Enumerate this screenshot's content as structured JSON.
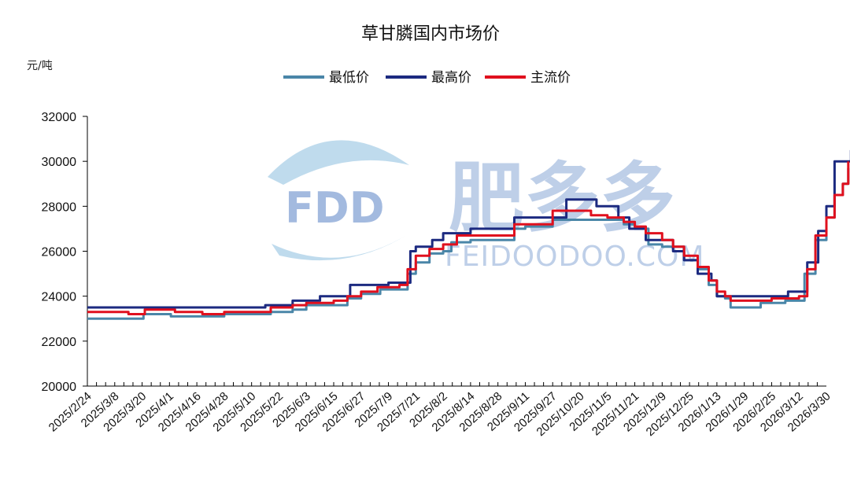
{
  "chart_data": {
    "type": "line",
    "title": "草甘膦国内市场价",
    "ylabel": "元/吨",
    "ylim": [
      20000,
      32000
    ],
    "yticks": [
      20000,
      22000,
      24000,
      26000,
      28000,
      30000,
      32000
    ],
    "x_tick_labels": [
      "2025/2/24",
      "2025/3/8",
      "2025/3/20",
      "2025/4/1",
      "2025/4/16",
      "2025/4/28",
      "2025/5/10",
      "2025/5/22",
      "2025/6/3",
      "2025/6/15",
      "2025/6/27",
      "2025/7/9",
      "2025/7/21",
      "2025/8/2",
      "2025/8/14",
      "2025/8/28",
      "2025/9/11",
      "2025/9/27",
      "2025/10/20",
      "2025/11/5",
      "2025/11/21",
      "2025/12/9",
      "2025/12/25",
      "2026/1/13",
      "2026/1/29",
      "2026/2/25",
      "2026/3/12",
      "2026/3/30"
    ],
    "legend_position": "top-center",
    "grid": false,
    "series": [
      {
        "name": "最低价",
        "color": "#4a86a8",
        "points": [
          [
            0,
            23000
          ],
          [
            1,
            23000
          ],
          [
            2,
            23000
          ],
          [
            2.05,
            23200
          ],
          [
            3,
            23200
          ],
          [
            3.05,
            23100
          ],
          [
            4,
            23100
          ],
          [
            5,
            23200
          ],
          [
            6,
            23200
          ],
          [
            6.7,
            23300
          ],
          [
            7.5,
            23400
          ],
          [
            8,
            23600
          ],
          [
            9,
            23600
          ],
          [
            9.5,
            23900
          ],
          [
            10,
            24100
          ],
          [
            10.7,
            24300
          ],
          [
            11.3,
            24300
          ],
          [
            11.7,
            25000
          ],
          [
            12,
            25500
          ],
          [
            12.5,
            25900
          ],
          [
            13,
            26000
          ],
          [
            13.3,
            26400
          ],
          [
            14,
            26500
          ],
          [
            15,
            26500
          ],
          [
            15.6,
            27000
          ],
          [
            16,
            27100
          ],
          [
            17.0,
            27400
          ],
          [
            18,
            27400
          ],
          [
            19,
            27400
          ],
          [
            19.6,
            27200
          ],
          [
            20,
            27000
          ],
          [
            20.5,
            26300
          ],
          [
            21,
            26200
          ],
          [
            21.8,
            25600
          ],
          [
            22.3,
            25200
          ],
          [
            22.7,
            24500
          ],
          [
            23,
            24000
          ],
          [
            23.3,
            23900
          ],
          [
            23.5,
            23500
          ],
          [
            24,
            23500
          ],
          [
            24.4,
            23500
          ],
          [
            24.6,
            23700
          ],
          [
            25,
            23700
          ],
          [
            25.5,
            23800
          ],
          [
            26,
            23800
          ],
          [
            26.2,
            25000
          ],
          [
            26.6,
            26500
          ],
          [
            27,
            27500
          ],
          [
            27.3,
            28500
          ],
          [
            27.6,
            29000
          ],
          [
            27.8,
            29700
          ]
        ]
      },
      {
        "name": "最高价",
        "color": "#1c2a80",
        "points": [
          [
            0,
            23500
          ],
          [
            1,
            23500
          ],
          [
            2,
            23500
          ],
          [
            3,
            23500
          ],
          [
            4,
            23500
          ],
          [
            5,
            23500
          ],
          [
            6,
            23500
          ],
          [
            6.5,
            23600
          ],
          [
            7,
            23600
          ],
          [
            7.5,
            23800
          ],
          [
            8,
            23800
          ],
          [
            8.5,
            24000
          ],
          [
            9,
            24000
          ],
          [
            9.6,
            24500
          ],
          [
            10,
            24500
          ],
          [
            11,
            24600
          ],
          [
            11.5,
            24600
          ],
          [
            11.8,
            26000
          ],
          [
            12,
            26200
          ],
          [
            12.6,
            26500
          ],
          [
            13,
            26800
          ],
          [
            14,
            27000
          ],
          [
            15,
            27000
          ],
          [
            15.6,
            27500
          ],
          [
            16,
            27500
          ],
          [
            17,
            27500
          ],
          [
            17.5,
            28300
          ],
          [
            18,
            28300
          ],
          [
            18.6,
            28000
          ],
          [
            19,
            28000
          ],
          [
            19.4,
            27500
          ],
          [
            19.8,
            27000
          ],
          [
            20,
            27000
          ],
          [
            20.4,
            26500
          ],
          [
            21,
            26500
          ],
          [
            21.4,
            26000
          ],
          [
            21.8,
            25600
          ],
          [
            22.3,
            25000
          ],
          [
            22.8,
            24700
          ],
          [
            23,
            24000
          ],
          [
            24,
            24000
          ],
          [
            25,
            24000
          ],
          [
            25.6,
            24200
          ],
          [
            26,
            24200
          ],
          [
            26.3,
            25500
          ],
          [
            26.7,
            26900
          ],
          [
            27,
            28000
          ],
          [
            27.3,
            30000
          ],
          [
            27.8,
            30000
          ],
          [
            27.9,
            30500
          ]
        ]
      },
      {
        "name": "主流价",
        "color": "#e0101e",
        "points": [
          [
            0,
            23300
          ],
          [
            1,
            23300
          ],
          [
            1.5,
            23200
          ],
          [
            2,
            23200
          ],
          [
            2.1,
            23400
          ],
          [
            3,
            23400
          ],
          [
            3.2,
            23300
          ],
          [
            4,
            23300
          ],
          [
            4.2,
            23200
          ],
          [
            5,
            23300
          ],
          [
            6,
            23300
          ],
          [
            6.7,
            23500
          ],
          [
            7.5,
            23600
          ],
          [
            8,
            23700
          ],
          [
            9,
            23800
          ],
          [
            9.5,
            24000
          ],
          [
            10,
            24200
          ],
          [
            10.6,
            24400
          ],
          [
            11.4,
            24500
          ],
          [
            11.7,
            25200
          ],
          [
            12,
            25800
          ],
          [
            12.5,
            26100
          ],
          [
            13,
            26300
          ],
          [
            13.5,
            26700
          ],
          [
            14,
            26700
          ],
          [
            15,
            26700
          ],
          [
            15.6,
            27200
          ],
          [
            16,
            27200
          ],
          [
            17.0,
            27800
          ],
          [
            18,
            27800
          ],
          [
            18.4,
            27600
          ],
          [
            19,
            27500
          ],
          [
            19.6,
            27300
          ],
          [
            20,
            27100
          ],
          [
            20.4,
            26800
          ],
          [
            21,
            26500
          ],
          [
            21.4,
            26200
          ],
          [
            21.8,
            25800
          ],
          [
            22.3,
            25300
          ],
          [
            22.7,
            24700
          ],
          [
            23,
            24200
          ],
          [
            23.3,
            24000
          ],
          [
            23.5,
            23800
          ],
          [
            24,
            23800
          ],
          [
            24.6,
            23800
          ],
          [
            25,
            23900
          ],
          [
            25.5,
            23900
          ],
          [
            26,
            24000
          ],
          [
            26.3,
            25200
          ],
          [
            26.6,
            26700
          ],
          [
            27,
            27500
          ],
          [
            27.3,
            28500
          ],
          [
            27.6,
            29000
          ],
          [
            27.8,
            30000
          ]
        ]
      }
    ]
  },
  "watermark": {
    "brand_cn": "肥多多",
    "brand_en": "FEIDOODOO.COM",
    "logo_text": "FDD"
  }
}
